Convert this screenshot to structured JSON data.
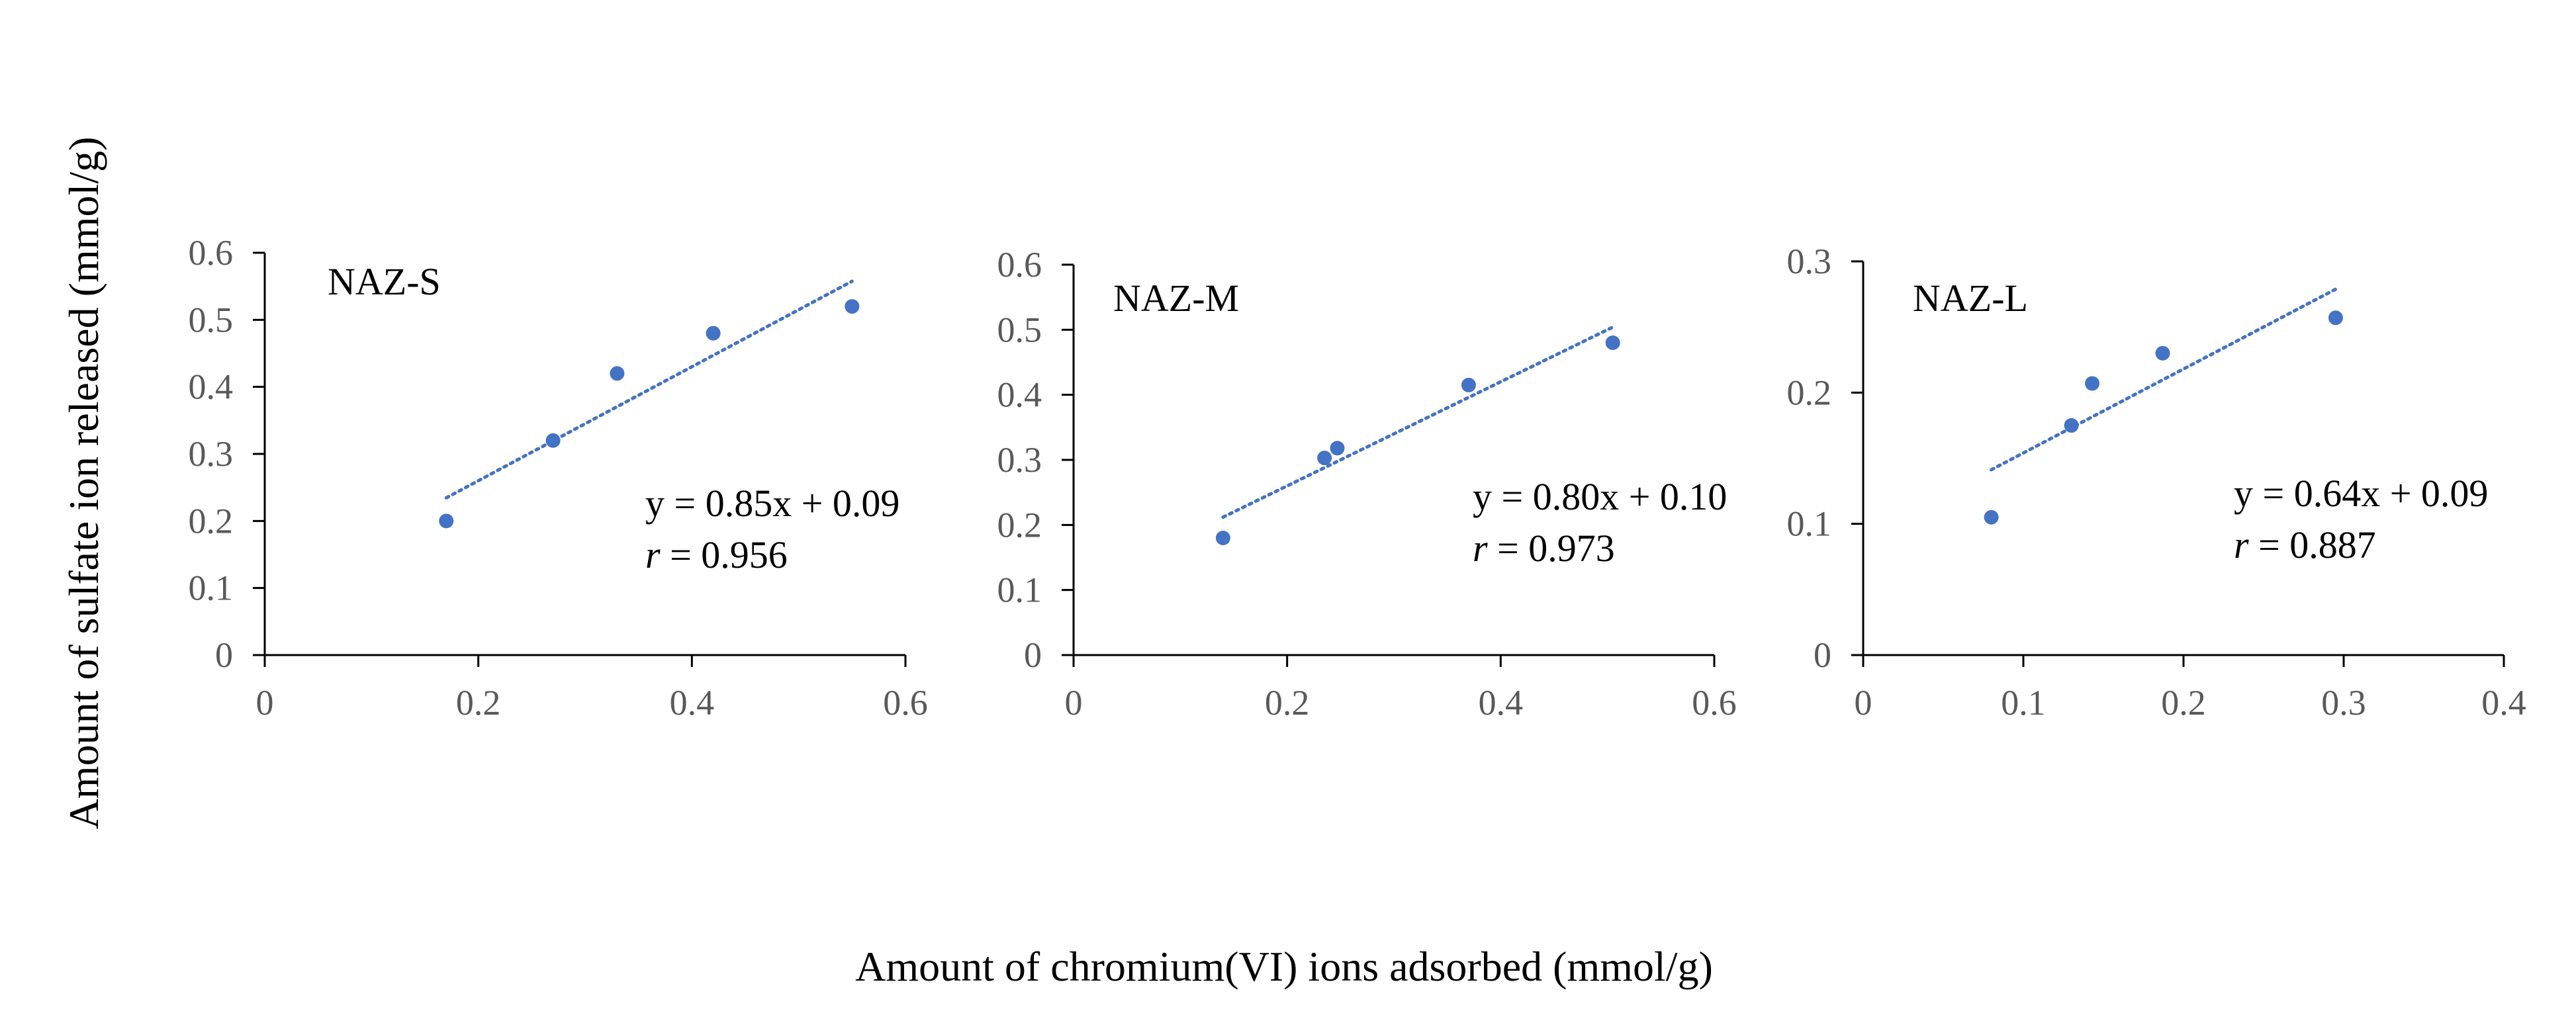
{
  "figure": {
    "xlabel": "Amount of chromium(VI) ions adsorbed (mmol/g)",
    "ylabel": "Amount of sulfate ion released (mmol/g)",
    "marker_color": "#4472C4",
    "trend_color": "#4472C4"
  },
  "chart_data": [
    {
      "type": "scatter",
      "title": "NAZ-S",
      "xlim": [
        0,
        0.6
      ],
      "ylim": [
        0,
        0.6
      ],
      "xticks": [
        0,
        0.2,
        0.4,
        0.6
      ],
      "xtick_labels": [
        "0",
        "0.2",
        "0.4",
        "0.6"
      ],
      "yticks": [
        0,
        0.1,
        0.2,
        0.3,
        0.4,
        0.5,
        0.6
      ],
      "ytick_labels": [
        "0",
        "0.1",
        "0.2",
        "0.3",
        "0.4",
        "0.5",
        "0.6"
      ],
      "x": [
        0.17,
        0.27,
        0.33,
        0.42,
        0.55
      ],
      "y": [
        0.2,
        0.32,
        0.42,
        0.48,
        0.52
      ],
      "trendline": {
        "slope": 0.85,
        "intercept": 0.09,
        "x_range": [
          0.17,
          0.55
        ]
      },
      "equation": "y = 0.85x + 0.09",
      "r_symbol": "r",
      "r_value": " = 0.956"
    },
    {
      "type": "scatter",
      "title": "NAZ-M",
      "xlim": [
        0,
        0.6
      ],
      "ylim": [
        0,
        0.6
      ],
      "xticks": [
        0,
        0.2,
        0.4,
        0.6
      ],
      "xtick_labels": [
        "0",
        "0.2",
        "0.4",
        "0.6"
      ],
      "yticks": [
        0,
        0.1,
        0.2,
        0.3,
        0.4,
        0.5,
        0.6
      ],
      "ytick_labels": [
        "0",
        "0.1",
        "0.2",
        "0.3",
        "0.4",
        "0.5",
        "0.6"
      ],
      "x": [
        0.14,
        0.235,
        0.247,
        0.37,
        0.505
      ],
      "y": [
        0.18,
        0.303,
        0.318,
        0.415,
        0.48
      ],
      "trendline": {
        "slope": 0.8,
        "intercept": 0.1,
        "x_range": [
          0.14,
          0.505
        ]
      },
      "equation": "y = 0.80x + 0.10",
      "r_symbol": "r",
      "r_value": " = 0.973"
    },
    {
      "type": "scatter",
      "title": "NAZ-L",
      "xlim": [
        0,
        0.4
      ],
      "ylim": [
        0,
        0.3
      ],
      "xticks": [
        0,
        0.1,
        0.2,
        0.3,
        0.4
      ],
      "xtick_labels": [
        "0",
        "0.1",
        "0.2",
        "0.3",
        "0.4"
      ],
      "yticks": [
        0,
        0.1,
        0.2,
        0.3
      ],
      "ytick_labels": [
        "0",
        "0.1",
        "0.2",
        "0.3"
      ],
      "x": [
        0.08,
        0.13,
        0.143,
        0.187,
        0.295
      ],
      "y": [
        0.105,
        0.175,
        0.207,
        0.23,
        0.257
      ],
      "trendline": {
        "slope": 0.64,
        "intercept": 0.09,
        "x_range": [
          0.08,
          0.295
        ]
      },
      "equation": "y = 0.64x + 0.09",
      "r_symbol": "r",
      "r_value": " = 0.887"
    }
  ]
}
